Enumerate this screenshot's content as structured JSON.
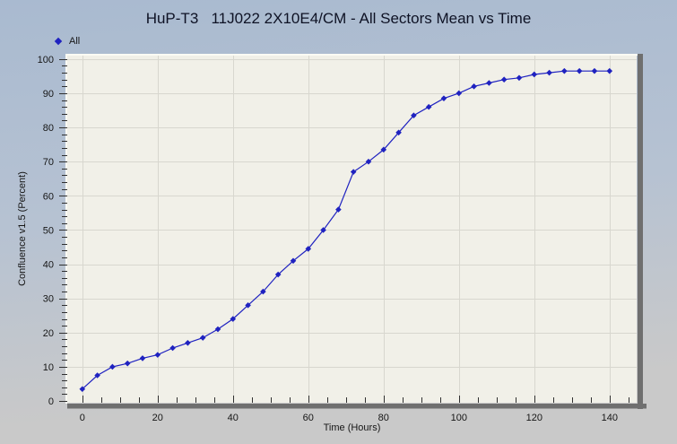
{
  "window": {
    "bg_gradient_top": "#a9bad0",
    "bg_gradient_mid": "#b6c2d2",
    "bg_gradient_bottom": "#c9c9c9"
  },
  "chart_data": {
    "type": "line",
    "title": "HuP-T3   11J022 2X10E4/CM - All Sectors Mean vs Time",
    "xlabel": "Time (Hours)",
    "ylabel": "Confluence v1.5 (Percent)",
    "legend": {
      "position": "top-left",
      "entries": [
        {
          "label": "All",
          "marker": "diamond"
        }
      ]
    },
    "axes": {
      "xlim": [
        -4,
        147.2
      ],
      "ylim": [
        -0.5,
        101
      ],
      "x_major_ticks": [
        0,
        20,
        40,
        60,
        80,
        100,
        120,
        140
      ],
      "x_minor_step": 5,
      "x_minor_max": 145,
      "y_major_ticks": [
        0,
        10,
        20,
        30,
        40,
        50,
        60,
        70,
        80,
        90,
        100
      ],
      "y_minor_step": 2,
      "grid": true
    },
    "series": [
      {
        "name": "All",
        "marker": "diamond",
        "x": [
          0,
          4,
          8,
          12,
          16,
          20,
          24,
          28,
          32,
          36,
          40,
          44,
          48,
          52,
          56,
          60,
          64,
          68,
          72,
          76,
          80,
          84,
          88,
          92,
          96,
          100,
          104,
          108,
          112,
          116,
          120,
          124,
          128,
          132,
          136,
          140
        ],
        "y": [
          3.5,
          7.5,
          10,
          11,
          12.5,
          13.5,
          15.5,
          17,
          18.5,
          21,
          24,
          28,
          32,
          37,
          41,
          44.5,
          50,
          56,
          67,
          70,
          73.5,
          78.5,
          83.5,
          86,
          88.5,
          90,
          92,
          93,
          94,
          94.5,
          95.5,
          96,
          96.5,
          96.5,
          96.5,
          96.5
        ]
      }
    ],
    "colors": {
      "series": "#1f22c0",
      "grid": "#d8d7cf",
      "plot_bg": "#f1f0e8",
      "frame_shadow": "#6f6f6f",
      "frame_highlight": "#fbfbf4",
      "tick": "#303030",
      "tick_text": "#161616",
      "title_text": "#0e1224"
    }
  }
}
